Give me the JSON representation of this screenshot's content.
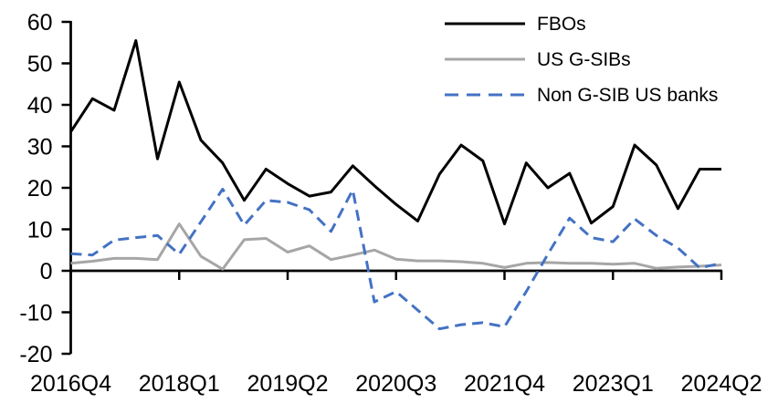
{
  "chart_data": {
    "type": "line",
    "title": "",
    "grid": false,
    "legend_position": "top-right",
    "ylim": [
      -20,
      60
    ],
    "y_ticks": [
      60,
      50,
      40,
      30,
      20,
      10,
      0,
      -10,
      -20
    ],
    "x_tick_labels": [
      "2016Q4",
      "2018Q1",
      "2019Q2",
      "2020Q3",
      "2021Q4",
      "2023Q1",
      "2024Q2"
    ],
    "x_tick_indices": [
      0,
      5,
      10,
      15,
      20,
      25,
      30
    ],
    "x": [
      "2016Q4",
      "2017Q1",
      "2017Q2",
      "2017Q3",
      "2017Q4",
      "2018Q1",
      "2018Q2",
      "2018Q3",
      "2018Q4",
      "2019Q1",
      "2019Q2",
      "2019Q3",
      "2019Q4",
      "2020Q1",
      "2020Q2",
      "2020Q3",
      "2020Q4",
      "2021Q1",
      "2021Q2",
      "2021Q3",
      "2021Q4",
      "2022Q1",
      "2022Q2",
      "2022Q3",
      "2022Q4",
      "2023Q1",
      "2023Q2",
      "2023Q3",
      "2023Q4",
      "2024Q1",
      "2024Q2"
    ],
    "series": [
      {
        "name": "FBOs",
        "color": "#000000",
        "style": "solid",
        "values": [
          33.5,
          41.5,
          38.7,
          55.5,
          27,
          45.5,
          31.5,
          26,
          17,
          24.5,
          21,
          18,
          19,
          25.3,
          20.5,
          16,
          12,
          23.3,
          30.3,
          26.5,
          11.3,
          26,
          20,
          23.5,
          11.5,
          15.5,
          30.3,
          25.5,
          15,
          24.5,
          24.5
        ]
      },
      {
        "name": "US G-SIBs",
        "color": "#a6a6a6",
        "style": "solid",
        "values": [
          1.8,
          2.3,
          3,
          3,
          2.7,
          11.3,
          3.5,
          0.4,
          7.5,
          7.8,
          4.5,
          6,
          2.7,
          3.8,
          5,
          2.8,
          2.4,
          2.4,
          2.2,
          1.8,
          0.8,
          1.8,
          2,
          1.8,
          1.8,
          1.6,
          1.8,
          0.6,
          0.9,
          1.1,
          1.4
        ]
      },
      {
        "name": "Non G-SIB US banks",
        "color": "#4472c4",
        "style": "dashed",
        "values": [
          4.1,
          3.8,
          7.4,
          8,
          8.5,
          4,
          11.8,
          19.7,
          11,
          17,
          16.5,
          14.7,
          9.5,
          19.5,
          -7.5,
          -5,
          -9.5,
          -14,
          -13,
          -12.5,
          -13.5,
          -5,
          4,
          12.7,
          8,
          7,
          12.5,
          8.5,
          5.5,
          0.7,
          1.8
        ]
      }
    ]
  }
}
